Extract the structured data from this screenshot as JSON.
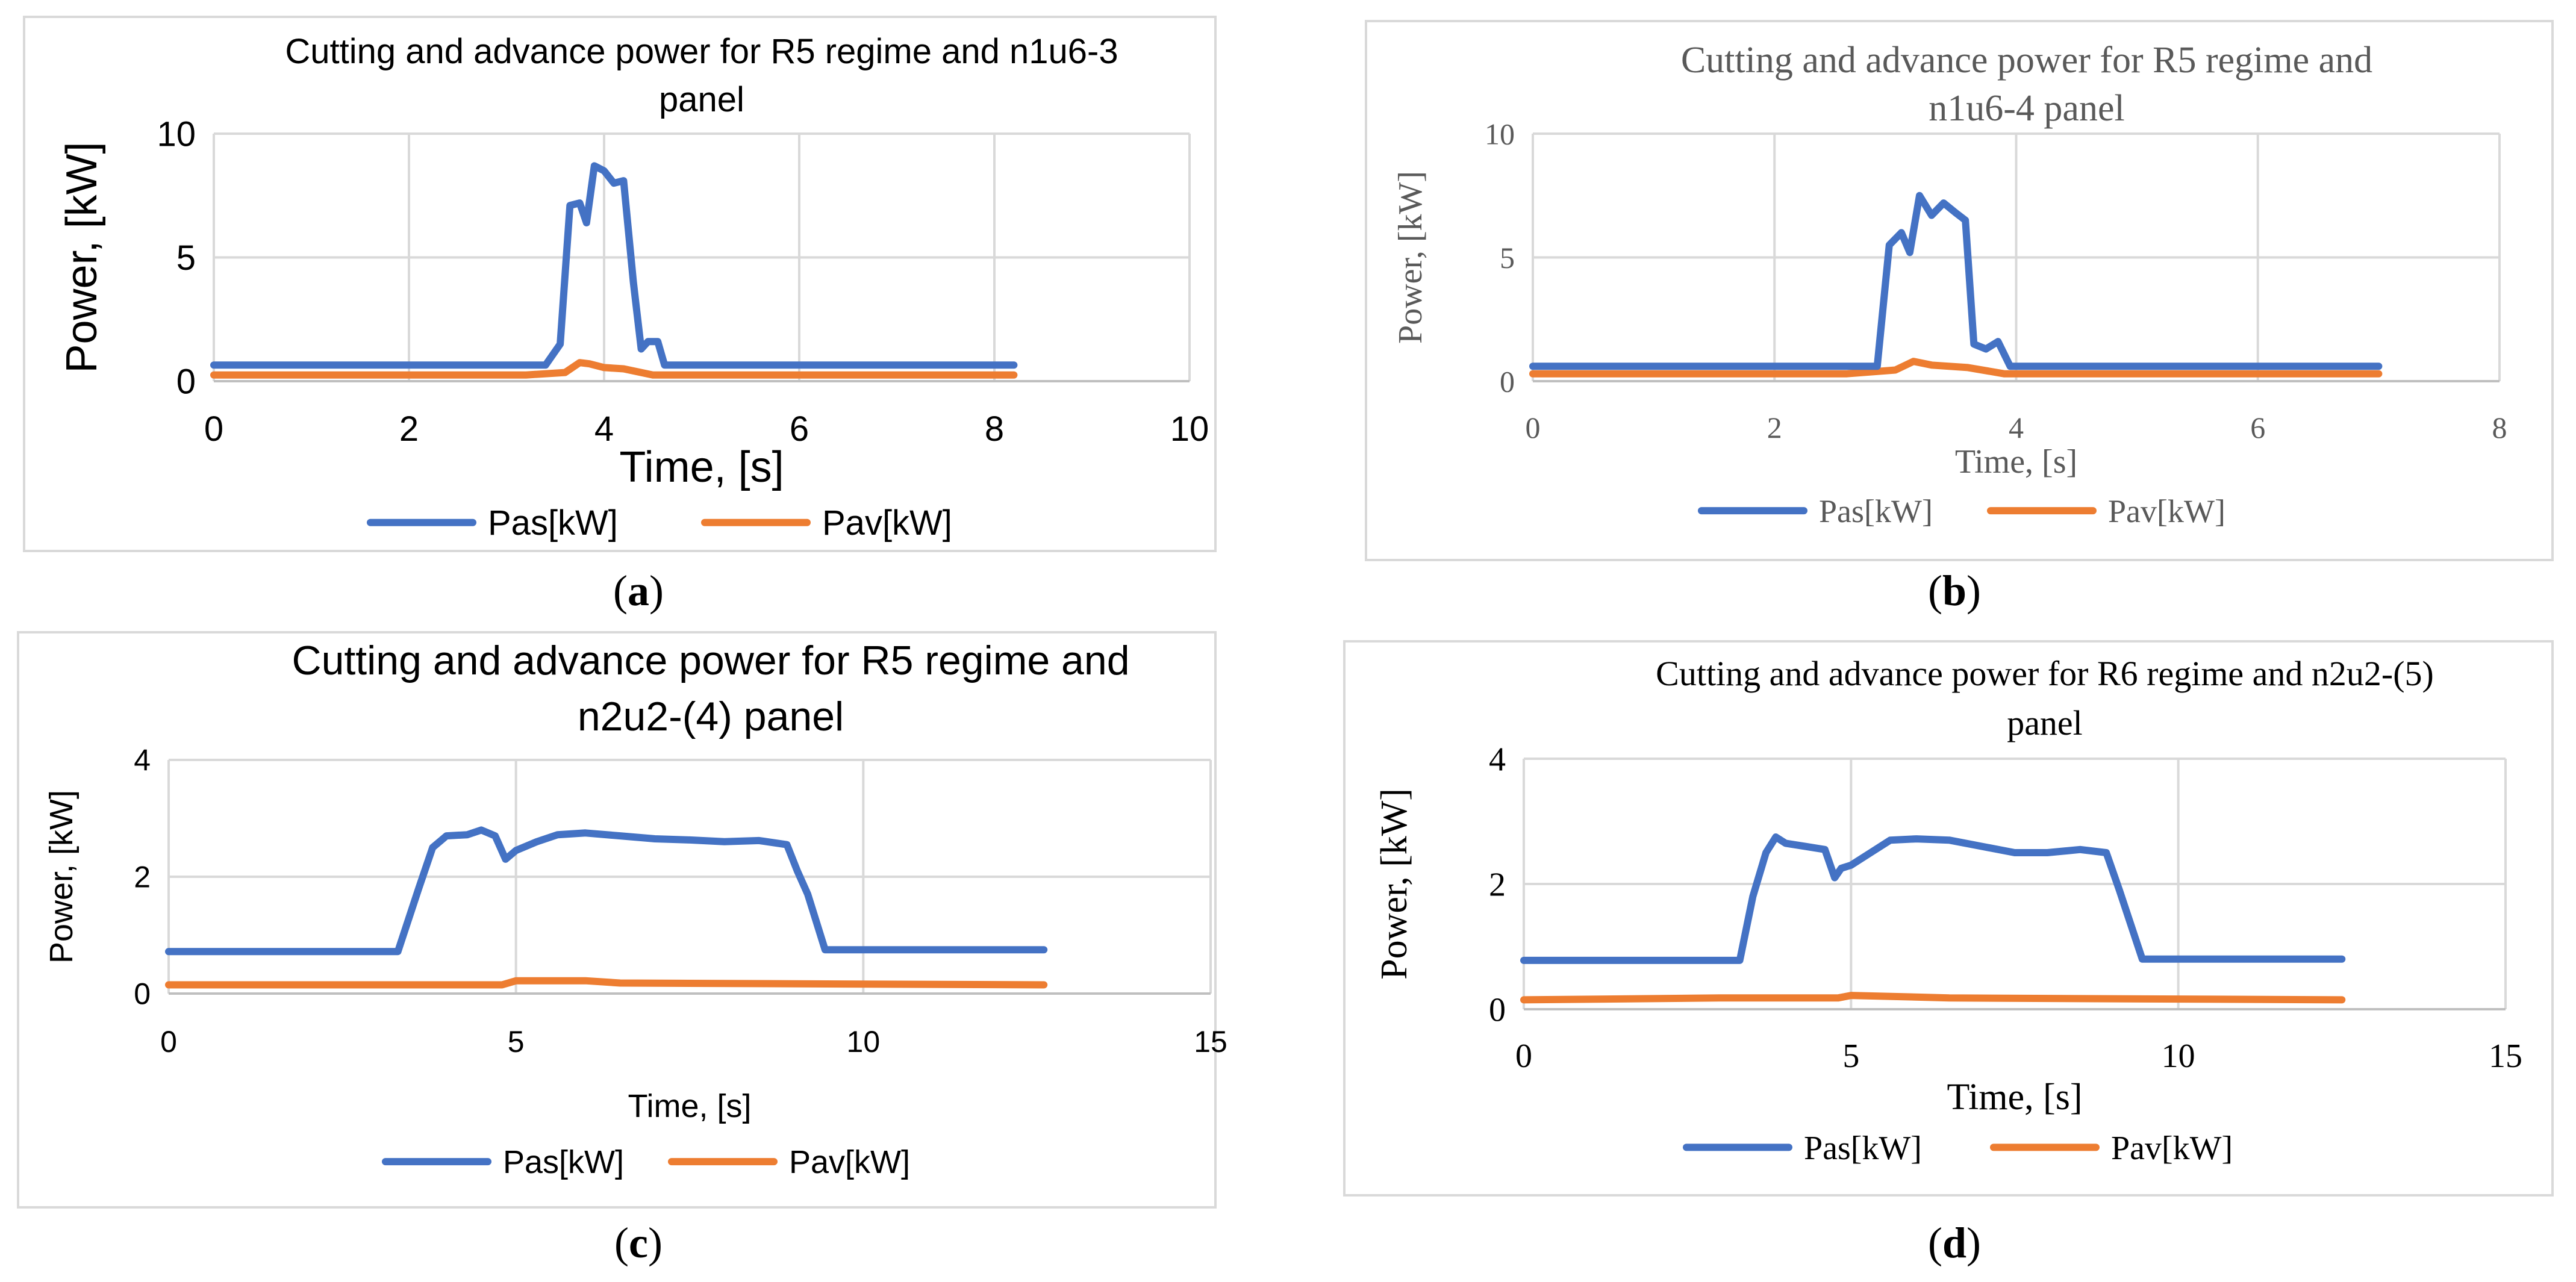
{
  "colors": {
    "pas": "#4472C4",
    "pav": "#ED7D31",
    "grid": "#D9D9D9",
    "axis": "#BFBFBF",
    "frame": "#D9D9D9",
    "text": "#000000",
    "text_muted": "#595959"
  },
  "chart_data": [
    {
      "id": "a",
      "type": "line",
      "caption": "a",
      "title": "Cutting and advance power for R5 regime and n1u6-3 panel",
      "title_lines": [
        "Cutting and advance power for R5 regime and n1u6-3",
        "panel"
      ],
      "xlabel": "Time, [s]",
      "ylabel": "Power, [kW]",
      "xlim": [
        0,
        10
      ],
      "ylim": [
        0,
        10
      ],
      "xticks": [
        0,
        2,
        4,
        6,
        8,
        10
      ],
      "yticks": [
        0,
        5,
        10
      ],
      "xtick_labels": [
        "0",
        "2",
        "4",
        "6",
        "8",
        "10"
      ],
      "ytick_labels": [
        "0",
        "5",
        "10"
      ],
      "grid": true,
      "legend": "bottom",
      "series": [
        {
          "name": "Pas[kW]",
          "x": [
            0,
            3.4,
            3.55,
            3.65,
            3.75,
            3.82,
            3.9,
            4.0,
            4.1,
            4.2,
            4.3,
            4.38,
            4.45,
            4.55,
            4.62,
            5.0,
            8.2
          ],
          "y": [
            0.65,
            0.65,
            1.5,
            7.1,
            7.2,
            6.4,
            8.7,
            8.5,
            8.0,
            8.1,
            4.0,
            1.3,
            1.6,
            1.6,
            0.65,
            0.65,
            0.65
          ]
        },
        {
          "name": "Pav[kW]",
          "x": [
            0,
            3.2,
            3.6,
            3.75,
            3.85,
            4.0,
            4.2,
            4.5,
            8.2
          ],
          "y": [
            0.25,
            0.25,
            0.35,
            0.75,
            0.7,
            0.55,
            0.5,
            0.25,
            0.25
          ]
        }
      ]
    },
    {
      "id": "b",
      "type": "line",
      "caption": "b",
      "title": "Cutting and advance power for R5 regime and n1u6-4 panel",
      "title_lines": [
        "Cutting and advance power for R5 regime and",
        "n1u6-4 panel"
      ],
      "xlabel": "Time, [s]",
      "ylabel": "Power, [kW]",
      "xlim": [
        0,
        8
      ],
      "ylim": [
        0,
        10
      ],
      "xticks": [
        0,
        2,
        4,
        6,
        8
      ],
      "yticks": [
        0,
        5,
        10
      ],
      "xtick_labels": [
        "0",
        "2",
        "4",
        "6",
        "8"
      ],
      "ytick_labels": [
        "0",
        "5",
        "10"
      ],
      "grid": true,
      "legend": "bottom",
      "series": [
        {
          "name": "Pas[kW]",
          "x": [
            0,
            2.85,
            2.95,
            3.05,
            3.12,
            3.2,
            3.3,
            3.4,
            3.5,
            3.58,
            3.65,
            3.75,
            3.85,
            3.95,
            7.0
          ],
          "y": [
            0.6,
            0.6,
            5.5,
            6.0,
            5.2,
            7.5,
            6.7,
            7.2,
            6.8,
            6.5,
            1.5,
            1.3,
            1.6,
            0.6,
            0.6
          ]
        },
        {
          "name": "Pav[kW]",
          "x": [
            0,
            2.6,
            3.0,
            3.15,
            3.3,
            3.6,
            3.9,
            7.0
          ],
          "y": [
            0.3,
            0.3,
            0.45,
            0.8,
            0.65,
            0.55,
            0.3,
            0.3
          ]
        }
      ]
    },
    {
      "id": "c",
      "type": "line",
      "caption": "c",
      "title": "Cutting and advance power for R5 regime and n2u2-(4) panel",
      "title_lines": [
        "Cutting and advance power for R5 regime and",
        "n2u2-(4) panel"
      ],
      "xlabel": "Time, [s]",
      "ylabel": "Power, [kW]",
      "xlim": [
        0,
        15
      ],
      "ylim": [
        0,
        4
      ],
      "xticks": [
        0,
        5,
        10,
        15
      ],
      "yticks": [
        0,
        2,
        4
      ],
      "xtick_labels": [
        "0",
        "5",
        "10",
        "15"
      ],
      "ytick_labels": [
        "0",
        "2",
        "4"
      ],
      "grid": true,
      "legend": "bottom",
      "series": [
        {
          "name": "Pas[kW]",
          "x": [
            0,
            3.3,
            3.6,
            3.8,
            4.0,
            4.3,
            4.5,
            4.7,
            4.85,
            5.0,
            5.3,
            5.6,
            6.0,
            6.5,
            7.0,
            7.5,
            8.0,
            8.5,
            8.9,
            9.05,
            9.2,
            9.45,
            12.6
          ],
          "y": [
            0.72,
            0.72,
            1.8,
            2.5,
            2.7,
            2.72,
            2.8,
            2.7,
            2.3,
            2.45,
            2.6,
            2.72,
            2.75,
            2.7,
            2.65,
            2.63,
            2.6,
            2.62,
            2.55,
            2.1,
            1.7,
            0.75,
            0.75
          ]
        },
        {
          "name": "Pav[kW]",
          "x": [
            0,
            4.8,
            5.0,
            6.0,
            6.5,
            12.6
          ],
          "y": [
            0.15,
            0.15,
            0.22,
            0.22,
            0.18,
            0.15
          ]
        }
      ]
    },
    {
      "id": "d",
      "type": "line",
      "caption": "d",
      "title": "Cutting and advance power for R6 regime and n2u2-(5) panel",
      "title_lines": [
        "Cutting and advance power for R6 regime and n2u2-(5)",
        "panel"
      ],
      "xlabel": "Time, [s]",
      "ylabel": "Power, [kW]",
      "xlim": [
        0,
        15
      ],
      "ylim": [
        0,
        4
      ],
      "xticks": [
        0,
        5,
        10,
        15
      ],
      "yticks": [
        0,
        2,
        4
      ],
      "xtick_labels": [
        "0",
        "5",
        "10",
        "15"
      ],
      "ytick_labels": [
        "0",
        "2",
        "4"
      ],
      "grid": true,
      "legend": "bottom",
      "series": [
        {
          "name": "Pas[kW]",
          "x": [
            0,
            3.3,
            3.5,
            3.7,
            3.85,
            4.0,
            4.3,
            4.6,
            4.75,
            4.85,
            5.0,
            5.3,
            5.6,
            6.0,
            6.5,
            7.0,
            7.5,
            8.0,
            8.5,
            8.9,
            9.1,
            9.45,
            12.5
          ],
          "y": [
            0.78,
            0.78,
            1.8,
            2.5,
            2.75,
            2.65,
            2.6,
            2.55,
            2.1,
            2.25,
            2.3,
            2.5,
            2.7,
            2.72,
            2.7,
            2.6,
            2.5,
            2.5,
            2.55,
            2.5,
            1.9,
            0.8,
            0.8
          ]
        },
        {
          "name": "Pav[kW]",
          "x": [
            0,
            3.0,
            4.8,
            5.0,
            5.8,
            6.5,
            12.5
          ],
          "y": [
            0.15,
            0.18,
            0.18,
            0.22,
            0.2,
            0.18,
            0.15
          ]
        }
      ]
    }
  ]
}
